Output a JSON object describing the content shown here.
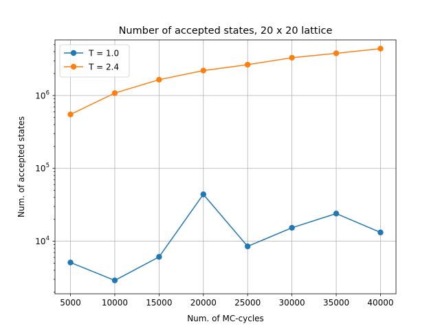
{
  "chart_data": {
    "type": "line",
    "title": "Number of accepted states, 20 x 20 lattice",
    "xlabel": "Num. of MC-cycles",
    "ylabel": "Num. of accepted states",
    "yscale": "log",
    "xlim": [
      3250,
      41750
    ],
    "ylim": [
      1900,
      5800000
    ],
    "grid": true,
    "legend_position": "top-left",
    "x_ticks": [
      5000,
      10000,
      15000,
      20000,
      25000,
      30000,
      35000,
      40000
    ],
    "y_ticks": [
      {
        "value": 10000,
        "base": "10",
        "exp": "4"
      },
      {
        "value": 100000,
        "base": "10",
        "exp": "5"
      },
      {
        "value": 1000000,
        "base": "10",
        "exp": "6"
      }
    ],
    "x": [
      5000,
      10000,
      15000,
      20000,
      25000,
      30000,
      35000,
      40000
    ],
    "series": [
      {
        "name": "T = 1.0",
        "color": "#1f77b4",
        "values": [
          5100,
          2900,
          6100,
          44000,
          8500,
          15300,
          24000,
          13200
        ]
      },
      {
        "name": "T = 2.4",
        "color": "#ff7f0e",
        "values": [
          550000,
          1080000,
          1650000,
          2200000,
          2650000,
          3300000,
          3800000,
          4400000
        ]
      }
    ]
  }
}
